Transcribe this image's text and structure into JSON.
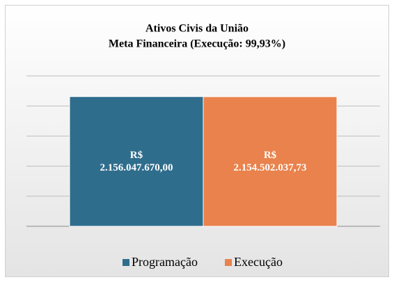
{
  "chart_data": {
    "type": "bar",
    "title": "Ativos Civis da União",
    "subtitle": "Meta Financeira (Execução: 99,93%)",
    "categories": [
      null
    ],
    "series": [
      {
        "name": "Programação",
        "color": "#2f6d8d",
        "values": [
          2156047670.0
        ],
        "value_labels": [
          "R$\n2.156.047.670,00"
        ]
      },
      {
        "name": "Execução",
        "color": "#e9824c",
        "values": [
          2154502037.73
        ],
        "value_labels": [
          "R$\n2.154.502.037,73"
        ]
      }
    ],
    "ylim": [
      0,
      2500000000
    ],
    "yticks": [
      0,
      500000000,
      1000000000,
      1500000000,
      2000000000,
      2500000000
    ],
    "grid": true,
    "legend": "bottom"
  }
}
